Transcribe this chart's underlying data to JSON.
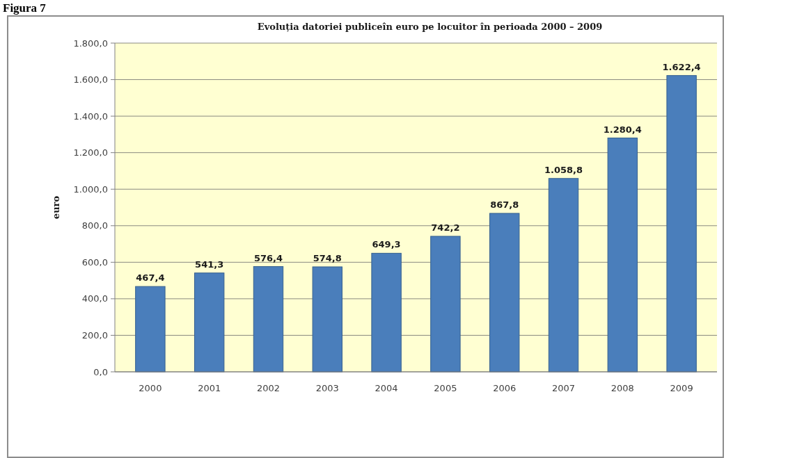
{
  "chart_data": {
    "type": "bar",
    "title": "Evoluția datoriei publiceîn euro pe locuitor în perioada 2000 – 2009",
    "ylabel": "euro",
    "annotations": [
      "Figura 7"
    ],
    "categories": [
      "2000",
      "2001",
      "2002",
      "2003",
      "2004",
      "2005",
      "2006",
      "2007",
      "2008",
      "2009"
    ],
    "values": [
      467.4,
      541.3,
      576.4,
      574.8,
      649.3,
      742.2,
      867.8,
      1058.8,
      1280.4,
      1622.4
    ],
    "value_labels": [
      "467,4",
      "541,3",
      "576,4",
      "574,8",
      "649,3",
      "742,2",
      "867,8",
      "1.058,8",
      "1.280,4",
      "1.622,4"
    ],
    "color": "#4a7ebb",
    "ylim": [
      0,
      1800
    ],
    "yticks": [
      {
        "value": 0,
        "label": "0,0"
      },
      {
        "value": 200,
        "label": "200,0"
      },
      {
        "value": 400,
        "label": "400,0"
      },
      {
        "value": 600,
        "label": "600,0"
      },
      {
        "value": 800,
        "label": "800,0"
      },
      {
        "value": 1000,
        "label": "1.000,0"
      },
      {
        "value": 1200,
        "label": "1.200,0"
      },
      {
        "value": 1400,
        "label": "1.400,0"
      },
      {
        "value": 1600,
        "label": "1.600,0"
      },
      {
        "value": 1800,
        "label": "1.800,0"
      }
    ],
    "grid": "y"
  }
}
